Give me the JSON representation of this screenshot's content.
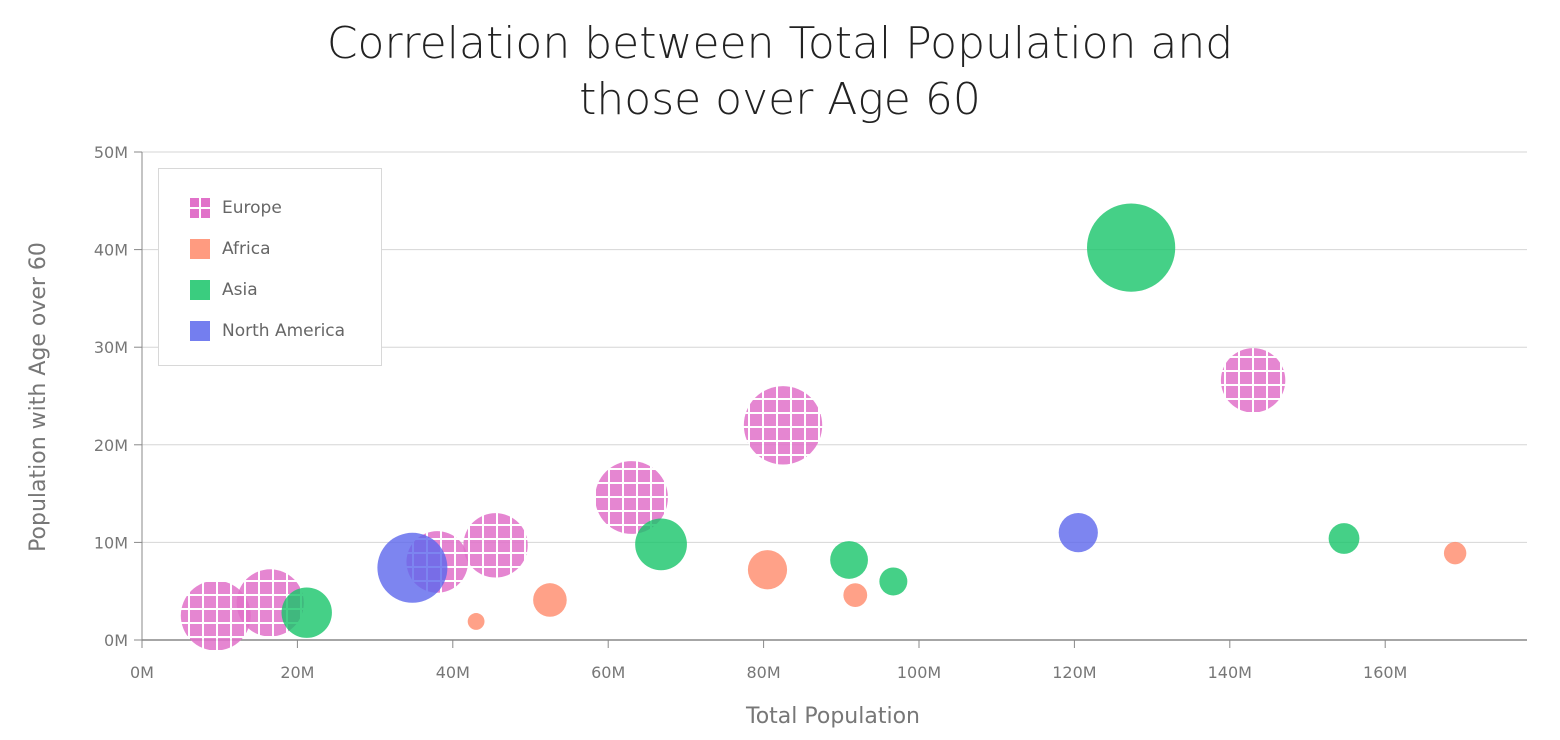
{
  "chart_data": {
    "type": "bubble",
    "title_lines": [
      "Correlation between Total Population and",
      "those over Age 60"
    ],
    "xlabel": "Total Population",
    "ylabel": "Population with Age over 60",
    "xlim": [
      0,
      178
    ],
    "ylim": [
      0,
      50
    ],
    "x_ticks": [
      0,
      20,
      40,
      60,
      80,
      100,
      120,
      140,
      160
    ],
    "x_tick_labels": [
      "0M",
      "20M",
      "40M",
      "60M",
      "80M",
      "100M",
      "120M",
      "140M",
      "160M"
    ],
    "y_ticks": [
      0,
      10,
      20,
      30,
      40,
      50
    ],
    "y_tick_labels": [
      "0M",
      "10M",
      "20M",
      "30M",
      "40M",
      "50M"
    ],
    "grid": true,
    "legend_position": "top-left",
    "series": [
      {
        "name": "Europe",
        "color": "#e171c9",
        "pattern": "grid",
        "points": [
          {
            "x": 9.5,
            "y": 2.5,
            "size": 5.0
          },
          {
            "x": 16.5,
            "y": 3.8,
            "size": 4.8
          },
          {
            "x": 38.0,
            "y": 8.0,
            "size": 4.4
          },
          {
            "x": 45.5,
            "y": 9.7,
            "size": 4.6
          },
          {
            "x": 63.0,
            "y": 14.6,
            "size": 5.2
          },
          {
            "x": 82.5,
            "y": 22.0,
            "size": 5.6
          },
          {
            "x": 143.0,
            "y": 26.6,
            "size": 4.6
          }
        ]
      },
      {
        "name": "Africa",
        "color": "#ff8a6a",
        "pattern": "solid",
        "points": [
          {
            "x": 43.0,
            "y": 1.9,
            "size": 1.2
          },
          {
            "x": 52.5,
            "y": 4.1,
            "size": 2.4
          },
          {
            "x": 80.5,
            "y": 7.2,
            "size": 2.8
          },
          {
            "x": 91.8,
            "y": 4.6,
            "size": 1.7
          },
          {
            "x": 169.0,
            "y": 8.9,
            "size": 1.6
          }
        ]
      },
      {
        "name": "Asia",
        "color": "#17c469",
        "pattern": "solid",
        "points": [
          {
            "x": 21.2,
            "y": 2.8,
            "size": 3.6
          },
          {
            "x": 66.8,
            "y": 9.8,
            "size": 3.7
          },
          {
            "x": 91.0,
            "y": 8.2,
            "size": 2.7
          },
          {
            "x": 96.7,
            "y": 6.0,
            "size": 2.0
          },
          {
            "x": 127.3,
            "y": 40.2,
            "size": 6.3
          },
          {
            "x": 154.7,
            "y": 10.4,
            "size": 2.2
          }
        ]
      },
      {
        "name": "North America",
        "color": "#5c67ec",
        "pattern": "solid",
        "points": [
          {
            "x": 34.8,
            "y": 7.4,
            "size": 5.0
          },
          {
            "x": 120.5,
            "y": 11.0,
            "size": 2.8
          }
        ]
      }
    ]
  }
}
